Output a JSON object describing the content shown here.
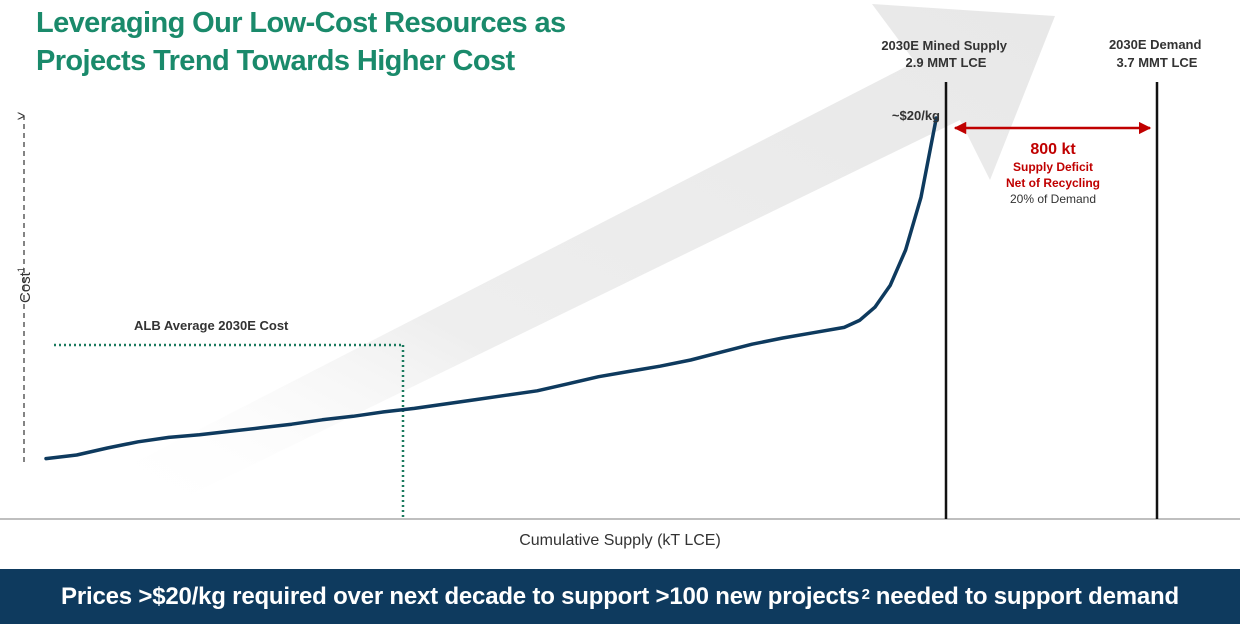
{
  "page": {
    "title_line1": "Leveraging Our Low-Cost Resources as",
    "title_line2": "Projects Trend Towards Higher Cost"
  },
  "chart_data": {
    "type": "line",
    "xlabel": "Cumulative Supply (kT LCE)",
    "ylabel": "Cost",
    "ylabel_superscript": "1",
    "series": [
      {
        "values": [
          [
            0.0,
            0.13
          ],
          [
            0.1,
            0.17
          ],
          [
            0.2,
            0.25
          ],
          [
            0.3,
            0.32
          ],
          [
            0.4,
            0.37
          ],
          [
            0.5,
            0.4
          ],
          [
            0.6,
            0.44
          ],
          [
            0.7,
            0.48
          ],
          [
            0.8,
            0.52
          ],
          [
            0.9,
            0.57
          ],
          [
            1.0,
            0.61
          ],
          [
            1.1,
            0.66
          ],
          [
            1.2,
            0.7
          ],
          [
            1.3,
            0.75
          ],
          [
            1.4,
            0.8
          ],
          [
            1.5,
            0.85
          ],
          [
            1.6,
            0.9
          ],
          [
            1.7,
            0.98
          ],
          [
            1.8,
            1.06
          ],
          [
            1.9,
            1.12
          ],
          [
            2.0,
            1.18
          ],
          [
            2.1,
            1.25
          ],
          [
            2.2,
            1.34
          ],
          [
            2.3,
            1.43
          ],
          [
            2.4,
            1.5
          ],
          [
            2.5,
            1.56
          ],
          [
            2.6,
            1.62
          ],
          [
            2.65,
            1.7
          ],
          [
            2.7,
            1.85
          ],
          [
            2.75,
            2.1
          ],
          [
            2.8,
            2.5
          ],
          [
            2.85,
            3.1
          ],
          [
            2.9,
            4.0
          ]
        ]
      }
    ],
    "reference_lines": [
      {
        "label_line1": "2030E Mined Supply",
        "label_line2": "2.9 MMT LCE"
      },
      {
        "label_line1": "2030E Demand",
        "label_line2": "3.7 MMT LCE"
      }
    ],
    "annotations": {
      "price_label": "~$20/kg",
      "alb_label": "ALB Average 2030E Cost",
      "deficit_value": "800 kt",
      "deficit_line1": "Supply Deficit",
      "deficit_line2": "Net of Recycling",
      "deficit_line3": "20% of Demand"
    }
  },
  "colors": {
    "title_green": "#1a8a6b",
    "curve_navy": "#0e3a5e",
    "dotted_green": "#1a7a5e",
    "deficit_red": "#c00000",
    "banner_bg": "#0e3a5e",
    "arrow_gray": "#ececec"
  },
  "banner": {
    "text_before": "Prices >$20/kg required over next decade to support >100 new projects",
    "superscript": "2",
    "text_after": "needed to support demand"
  }
}
